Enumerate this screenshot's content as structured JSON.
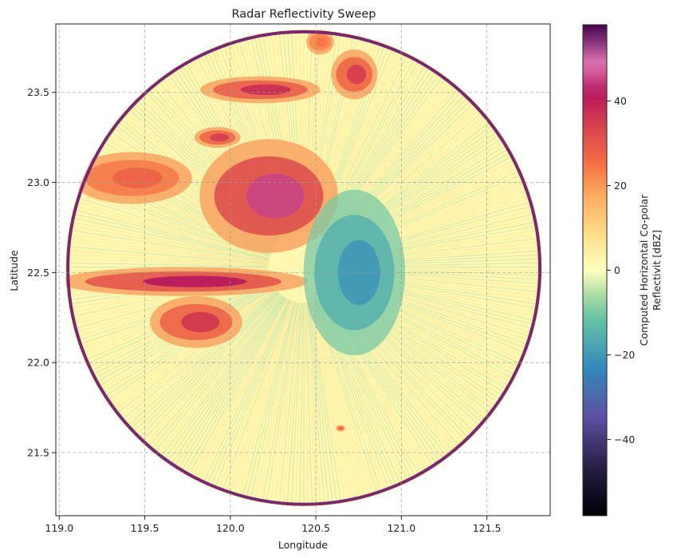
{
  "chart_data": {
    "type": "heatmap",
    "title": "Radar Reflectivity Sweep",
    "xlabel": "Longitude",
    "ylabel": "Latitude",
    "xlim": [
      118.98,
      121.87
    ],
    "ylim": [
      21.15,
      23.88
    ],
    "xticks": [
      119.0,
      119.5,
      120.0,
      120.5,
      121.0,
      121.5
    ],
    "xtick_labels": [
      "119.0",
      "119.5",
      "120.0",
      "120.5",
      "121.0",
      "121.5"
    ],
    "yticks": [
      21.5,
      22.0,
      22.5,
      23.0,
      23.5
    ],
    "ytick_labels": [
      "21.5",
      "22.0",
      "22.5",
      "23.0",
      "23.5"
    ],
    "grid": true,
    "radar_center": {
      "lon": 120.43,
      "lat": 22.53
    },
    "radar_extent": {
      "lon_min": 119.02,
      "lon_max": 121.84,
      "lat_min": 21.2,
      "lat_max": 23.85
    },
    "colorbar": {
      "label": "Computed Horizontal Co-polar Reflectivit [dBZ]",
      "colormap": "Spectral_r",
      "vmin": -58,
      "vmax": 58,
      "ticks": [
        -40,
        -20,
        0,
        20,
        40
      ],
      "tick_labels": [
        "−40",
        "−20",
        "0",
        "20",
        "40"
      ]
    },
    "echo_regions": [
      {
        "name": "northern band",
        "lon": [
          119.85,
          120.5
        ],
        "lat": [
          23.45,
          23.58
        ],
        "peak_dbz": 38
      },
      {
        "name": "northeast cell",
        "lon": [
          120.6,
          120.85
        ],
        "lat": [
          23.48,
          23.72
        ],
        "peak_dbz": 35
      },
      {
        "name": "far north fringe",
        "lon": [
          120.45,
          120.6
        ],
        "lat": [
          23.72,
          23.84
        ],
        "peak_dbz": 25
      },
      {
        "name": "central stratiform mass",
        "lon": [
          119.85,
          120.6
        ],
        "lat": [
          22.65,
          23.2
        ],
        "peak_dbz": 45
      },
      {
        "name": "western band",
        "lon": [
          119.1,
          119.75
        ],
        "lat": [
          22.9,
          23.15
        ],
        "peak_dbz": 28
      },
      {
        "name": "cell north of center",
        "lon": [
          119.8,
          120.05
        ],
        "lat": [
          23.2,
          23.3
        ],
        "peak_dbz": 35
      },
      {
        "name": "southwest band",
        "lon": [
          119.05,
          120.4
        ],
        "lat": [
          22.38,
          22.52
        ],
        "peak_dbz": 42
      },
      {
        "name": "southwest cluster",
        "lon": [
          119.55,
          120.05
        ],
        "lat": [
          22.1,
          22.35
        ],
        "peak_dbz": 36
      },
      {
        "name": "isolated cell",
        "lon": [
          120.62,
          120.67
        ],
        "lat": [
          21.62,
          21.65
        ],
        "peak_dbz": 28
      },
      {
        "name": "ground clutter east of radar",
        "lon": [
          120.45,
          121.0
        ],
        "lat": [
          22.1,
          22.9
        ],
        "peak_dbz": -20
      }
    ]
  }
}
